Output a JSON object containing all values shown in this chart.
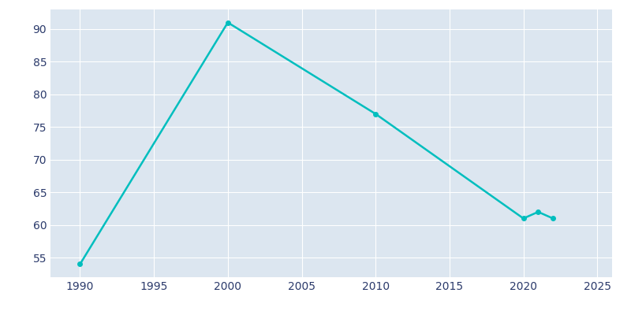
{
  "years": [
    1990,
    2000,
    2010,
    2020,
    2021,
    2022
  ],
  "population": [
    54,
    91,
    77,
    61,
    62,
    61
  ],
  "line_color": "#00BEBE",
  "background_color": "#ffffff",
  "plot_bg_color": "#dce6f0",
  "xlabel": "",
  "ylabel": "",
  "xlim": [
    1988,
    2026
  ],
  "ylim": [
    52,
    93
  ],
  "xticks": [
    1990,
    1995,
    2000,
    2005,
    2010,
    2015,
    2020,
    2025
  ],
  "yticks": [
    55,
    60,
    65,
    70,
    75,
    80,
    85,
    90
  ],
  "tick_color": "#2b3a6b",
  "grid_color": "#ffffff",
  "line_width": 1.8,
  "marker": "o",
  "marker_size": 4
}
